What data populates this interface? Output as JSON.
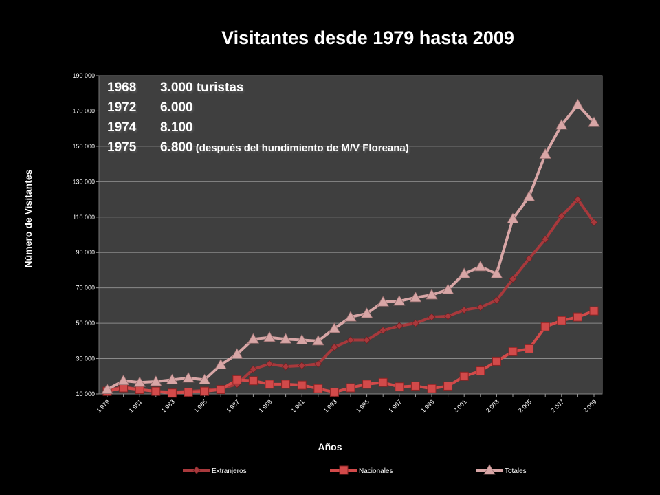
{
  "chart_data": {
    "type": "line",
    "title": "Visitantes desde 1979 hasta 2009",
    "xlabel": "Años",
    "ylabel": "Número de Visitantes",
    "ylim": [
      10000,
      190000
    ],
    "y_ticks": [
      "10 000",
      "30 000",
      "50 000",
      "70 000",
      "90 000",
      "110 000",
      "130 000",
      "150 000",
      "170 000",
      "190 000"
    ],
    "x_tick_labels": [
      "1 979",
      "1 981",
      "1 983",
      "1 985",
      "1 987",
      "1 989",
      "1 991",
      "1 993",
      "1 995",
      "1 997",
      "1 999",
      "2 001",
      "2 003",
      "2 005",
      "2 007",
      "2 009"
    ],
    "x": [
      1979,
      1980,
      1981,
      1982,
      1983,
      1984,
      1985,
      1986,
      1987,
      1988,
      1989,
      1990,
      1991,
      1992,
      1993,
      1994,
      1995,
      1996,
      1997,
      1998,
      1999,
      2000,
      2001,
      2002,
      2003,
      2004,
      2005,
      2006,
      2007,
      2008,
      2009
    ],
    "grid": true,
    "legend_position": "bottom",
    "series": [
      {
        "name": "Extranjeros",
        "color": "#a8393c",
        "marker": "diamond",
        "values": [
          12000,
          14000,
          12500,
          11500,
          11000,
          11500,
          12000,
          13000,
          15500,
          24000,
          27000,
          25500,
          26000,
          27000,
          36500,
          40500,
          40500,
          46000,
          48500,
          50000,
          53500,
          54000,
          57500,
          59000,
          63000,
          75000,
          86500,
          97500,
          110500,
          120000,
          107000
        ]
      },
      {
        "name": "Nacionales",
        "color": "#d24a4a",
        "marker": "square",
        "values": [
          11500,
          13500,
          12500,
          11500,
          10500,
          11000,
          11500,
          12500,
          18000,
          17500,
          15500,
          15500,
          15000,
          13000,
          11000,
          13500,
          15500,
          16500,
          14000,
          14500,
          13000,
          14500,
          20000,
          23000,
          28500,
          34000,
          35500,
          48000,
          51500,
          53500,
          57000
        ]
      },
      {
        "name": "Totales",
        "color": "#d8a6a6",
        "marker": "triangle",
        "values": [
          12500,
          17500,
          16500,
          17000,
          18000,
          19000,
          18000,
          26500,
          32500,
          41000,
          42000,
          41000,
          40500,
          40000,
          47000,
          53500,
          55500,
          62000,
          62500,
          64500,
          66000,
          69000,
          78000,
          82000,
          78000,
          109000,
          121500,
          145500,
          162000,
          173500,
          163500
        ]
      }
    ]
  },
  "annotations": [
    {
      "year": "1968",
      "text": "3.000 turistas",
      "note": ""
    },
    {
      "year": "1972",
      "text": "6.000",
      "note": ""
    },
    {
      "year": "1974",
      "text": "8.100",
      "note": ""
    },
    {
      "year": "1975",
      "text": "6.800",
      "note": " (después del hundimiento de  M/V Floreana)"
    }
  ]
}
